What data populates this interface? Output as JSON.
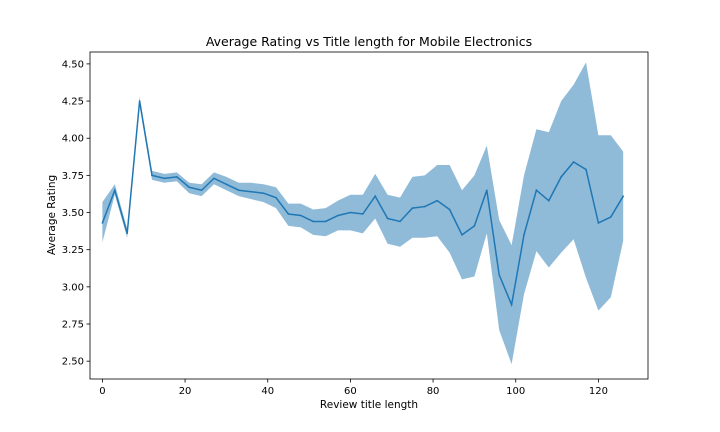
{
  "chart_data": {
    "type": "line",
    "title": "Average Rating vs Title length for Mobile Electronics",
    "xlabel": "Review title length",
    "ylabel": "Average Rating",
    "xlim": [
      -3,
      132
    ],
    "ylim": [
      2.38,
      4.58
    ],
    "xticks": [
      0,
      20,
      40,
      60,
      80,
      100,
      120
    ],
    "yticks": [
      2.5,
      2.75,
      3.0,
      3.25,
      3.5,
      3.75,
      4.0,
      4.25,
      4.5
    ],
    "xtick_labels": [
      "0",
      "20",
      "40",
      "60",
      "80",
      "100",
      "120"
    ],
    "ytick_labels": [
      "2.50",
      "2.75",
      "3.00",
      "3.25",
      "3.50",
      "3.75",
      "4.00",
      "4.25",
      "4.50"
    ],
    "grid": false,
    "colors": {
      "line": "#1f77b4",
      "band": "#1f77b4",
      "axes": "#000000"
    },
    "series": [
      {
        "x": [
          0,
          3,
          6,
          9,
          12,
          15,
          18,
          21,
          24,
          27,
          30,
          33,
          36,
          39,
          42,
          45,
          48,
          51,
          54,
          57,
          60,
          63,
          66,
          69,
          72,
          75,
          78,
          81,
          84,
          87,
          90,
          93,
          96,
          99,
          102,
          105,
          108,
          111,
          114,
          117,
          120,
          123,
          126
        ],
        "y": [
          3.43,
          3.65,
          3.36,
          4.25,
          3.75,
          3.73,
          3.74,
          3.67,
          3.65,
          3.73,
          3.69,
          3.65,
          3.64,
          3.63,
          3.6,
          3.49,
          3.48,
          3.44,
          3.44,
          3.48,
          3.5,
          3.49,
          3.61,
          3.46,
          3.44,
          3.53,
          3.54,
          3.58,
          3.52,
          3.35,
          3.41,
          3.65,
          3.08,
          2.88,
          3.35,
          3.65,
          3.58,
          3.74,
          3.84,
          3.79,
          3.43,
          3.47,
          3.61
        ],
        "lower": [
          3.3,
          3.62,
          3.33,
          4.22,
          3.72,
          3.7,
          3.71,
          3.63,
          3.61,
          3.69,
          3.65,
          3.61,
          3.59,
          3.57,
          3.53,
          3.41,
          3.4,
          3.35,
          3.34,
          3.38,
          3.38,
          3.36,
          3.46,
          3.29,
          3.27,
          3.33,
          3.33,
          3.34,
          3.23,
          3.05,
          3.07,
          3.36,
          2.71,
          2.48,
          2.95,
          3.24,
          3.13,
          3.23,
          3.32,
          3.06,
          2.84,
          2.93,
          3.31
        ],
        "upper": [
          3.57,
          3.69,
          3.39,
          4.28,
          3.78,
          3.76,
          3.77,
          3.7,
          3.69,
          3.77,
          3.74,
          3.7,
          3.7,
          3.69,
          3.67,
          3.56,
          3.56,
          3.52,
          3.53,
          3.58,
          3.62,
          3.62,
          3.76,
          3.62,
          3.6,
          3.74,
          3.75,
          3.82,
          3.82,
          3.65,
          3.75,
          3.95,
          3.45,
          3.28,
          3.75,
          4.06,
          4.04,
          4.25,
          4.36,
          4.51,
          4.02,
          4.02,
          3.91
        ]
      }
    ]
  }
}
